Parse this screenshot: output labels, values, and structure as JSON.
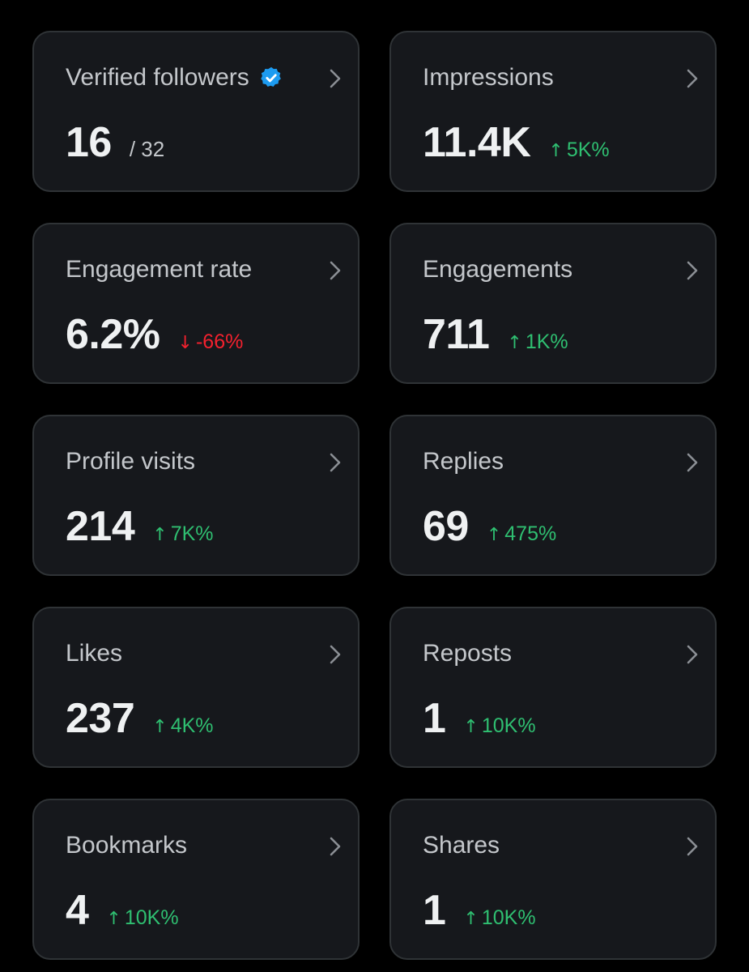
{
  "colors": {
    "background": "#000000",
    "card": "#16181c",
    "border": "#2f3336",
    "up": "#2fbf71",
    "down": "#f4212e",
    "verified": "#1d9bf0"
  },
  "cards": [
    {
      "label": "Verified followers",
      "verified_icon": "verified-badge-icon",
      "value": "16",
      "total": "/ 32"
    },
    {
      "label": "Impressions",
      "value": "11.4K",
      "arrow": "↑",
      "change": "5K%"
    },
    {
      "label": "Engagement rate",
      "value": "6.2%",
      "arrow": "↓",
      "change": "-66%"
    },
    {
      "label": "Engagements",
      "value": "711",
      "arrow": "↑",
      "change": "1K%"
    },
    {
      "label": "Profile visits",
      "value": "214",
      "arrow": "↑",
      "change": "7K%"
    },
    {
      "label": "Replies",
      "value": "69",
      "arrow": "↑",
      "change": "475%"
    },
    {
      "label": "Likes",
      "value": "237",
      "arrow": "↑",
      "change": "4K%"
    },
    {
      "label": "Reposts",
      "value": "1",
      "arrow": "↑",
      "change": "10K%"
    },
    {
      "label": "Bookmarks",
      "value": "4",
      "arrow": "↑",
      "change": "10K%"
    },
    {
      "label": "Shares",
      "value": "1",
      "arrow": "↑",
      "change": "10K%"
    }
  ]
}
